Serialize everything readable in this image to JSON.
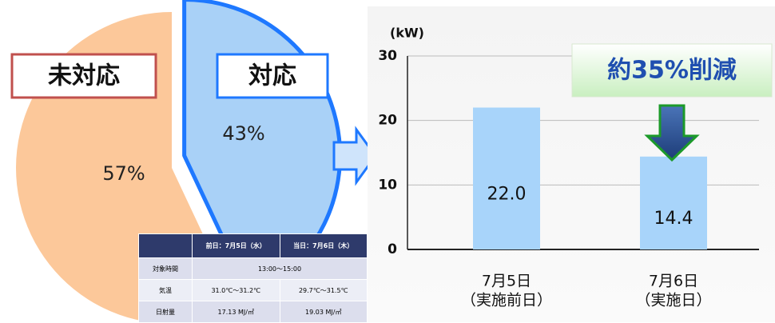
{
  "chart_data": [
    {
      "type": "pie",
      "categories": [
        "未対応",
        "対応"
      ],
      "values": [
        57,
        43
      ],
      "value_labels": [
        "57%",
        "43%"
      ],
      "colors": [
        "#fcc89a",
        "#a9d1f7"
      ]
    },
    {
      "type": "bar",
      "ylabel": "(kW)",
      "categories": [
        [
          "7月5日",
          "（実施前日）"
        ],
        [
          "7月6日",
          "（実施日）"
        ]
      ],
      "values": [
        22.0,
        14.4
      ],
      "value_labels": [
        "22.0",
        "14.4"
      ],
      "color": "#a8d4fa",
      "ylim": [
        0,
        30
      ],
      "yticks": [
        0,
        10,
        20,
        30
      ],
      "grid": true,
      "annotation": "約35%削減"
    }
  ],
  "table": {
    "header": [
      "前日：7月5日（水）",
      "当日：7月6日（木）"
    ],
    "rows": [
      [
        "対象時間",
        "13:00～15:00"
      ],
      [
        "気温",
        "31.0℃～31.2℃",
        "29.7℃～31.5℃"
      ],
      [
        "日射量",
        "17.13 MJ/㎡",
        "19.03 MJ/㎡"
      ]
    ]
  }
}
